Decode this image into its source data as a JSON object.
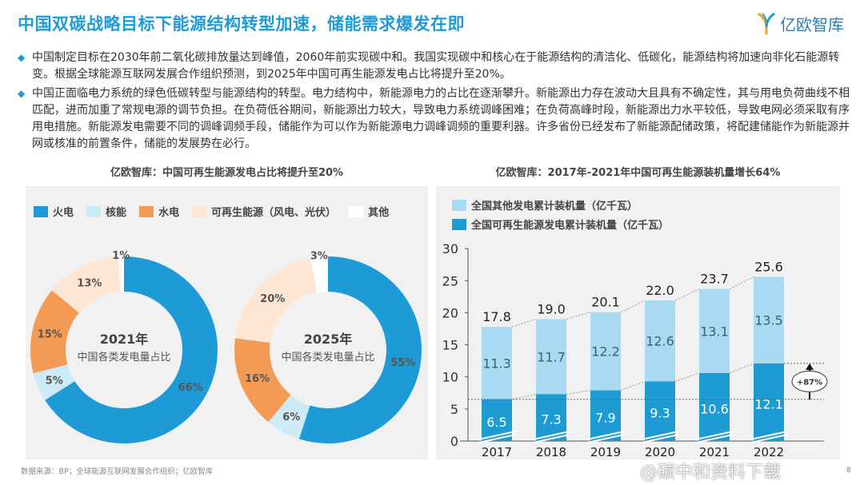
{
  "header": {
    "title": "中国双碳战略目标下能源结构转型加速，储能需求爆发在即",
    "logo_text": "亿欧智库"
  },
  "bullets": [
    "中国制定目标在2030年前二氧化碳排放量达到峰值，2060年前实现碳中和。我国实现碳中和核心在于能源结构的清洁化、低碳化，能源结构将加速向非化石能源转变。根据全球能源互联网发展合作组织预测，到2025年中国可再生能源发电占比将提升至20%。",
    "中国正面临电力系统的绿色低碳转型与能源结构的转型。电力结构中，新能源电力的占比在逐渐攀升。新能源出力存在波动大且具有不确定性，其与用电负荷曲线不相匹配，进而加重了常规电源的调节负担。在负荷低谷期间，新能源出力较大，导致电力系统调峰困难；在负荷高峰时段，新能源出力水平较低，导致电网必须采取有序用电措施。新能源发电需要不同的调峰调频手段，储能作为可以作为新能源电力调峰调频的重要利器。许多省份已经发布了新能源配储政策，将配建储能作为新能源并网或核准的前置条件，储能的发展势在必行。"
  ],
  "chart_data": [
    {
      "type": "pie",
      "title": "亿欧智库：中国可再生能源发电占比将提升至20%",
      "legend": [
        "火电",
        "核能",
        "水电",
        "可再生能源（风电、光伏）",
        "其他"
      ],
      "colors": [
        "#1e9bd7",
        "#cdeaf7",
        "#f39a55",
        "#fde6d3",
        "#ffffff"
      ],
      "donuts": [
        {
          "center_year": "2021年",
          "center_label": "中国各类发电量占比",
          "values": [
            66,
            5,
            15,
            13,
            1
          ],
          "labels": [
            "66%",
            "5%",
            "15%",
            "13%",
            "1%"
          ]
        },
        {
          "center_year": "2025年",
          "center_label": "中国各类发电量占比",
          "values": [
            55,
            6,
            16,
            20,
            3
          ],
          "labels": [
            "55%",
            "6%",
            "16%",
            "20%",
            "3%"
          ]
        }
      ]
    },
    {
      "type": "bar",
      "stacked": true,
      "title": "亿欧智库：2017年-2021年中国可再生能源装机量增长64%",
      "categories": [
        "2017",
        "2018",
        "2019",
        "2020",
        "2021",
        "2022"
      ],
      "series": [
        {
          "name": "全国可再生能源发电累计装机量（亿千瓦）",
          "color": "#1f9bd4",
          "values": [
            6.5,
            7.3,
            7.9,
            9.3,
            10.6,
            12.1
          ]
        },
        {
          "name": "全国其他发电累计装机量（亿千瓦）",
          "color": "#a8daf2",
          "values": [
            11.3,
            11.7,
            12.2,
            12.6,
            13.1,
            13.5
          ]
        }
      ],
      "totals": [
        "17.8",
        "19.0",
        "20.1",
        "22.0",
        "23.7",
        "25.6"
      ],
      "yticks": [
        0,
        5,
        10,
        15,
        20,
        25,
        30
      ],
      "ylim": [
        0,
        30
      ],
      "annotation": "+87%",
      "axis_break": true
    }
  ],
  "footer": {
    "source": "数据来源：BP；全球能源互联网发展合作组织；亿欧智库",
    "page": "8",
    "watermark": "@碳中和资料下载"
  }
}
